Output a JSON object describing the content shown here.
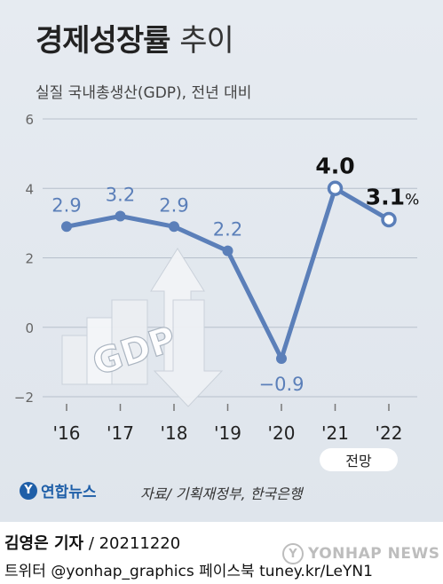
{
  "header": {
    "title": "경제성장률",
    "title_suffix": "추이",
    "subtitle": "실질 국내총생산(GDP), 전년 대비"
  },
  "chart_data": {
    "type": "line",
    "x": [
      "'16",
      "'17",
      "'18",
      "'19",
      "'20",
      "'21",
      "'22"
    ],
    "values": [
      2.9,
      3.2,
      2.9,
      2.2,
      -0.9,
      4.0,
      3.1
    ],
    "labels": [
      "2.9",
      "3.2",
      "2.9",
      "2.2",
      "−0.9",
      "4.0",
      "3.1"
    ],
    "unit": "%",
    "yticks": [
      "6",
      "4",
      "2",
      "0",
      "−2"
    ],
    "ylim": [
      -2,
      6
    ],
    "grid": true,
    "forecast_label": "전망",
    "illustration_text": "GDP",
    "colors": {
      "line": "#5b7fb9",
      "grid": "#b7c0cb",
      "label": "#5b7fb9",
      "highlight": "#111111"
    }
  },
  "footer": {
    "logo_text": "연합뉴스",
    "source": "자료/ 기획재정부, 한국은행",
    "reporter": "김영은 기자",
    "date_code": "/ 20211220",
    "social": "트위터 @yonhap_graphics  페이스북 tuney.kr/LeYN1",
    "watermark": "YONHAP NEWS"
  }
}
